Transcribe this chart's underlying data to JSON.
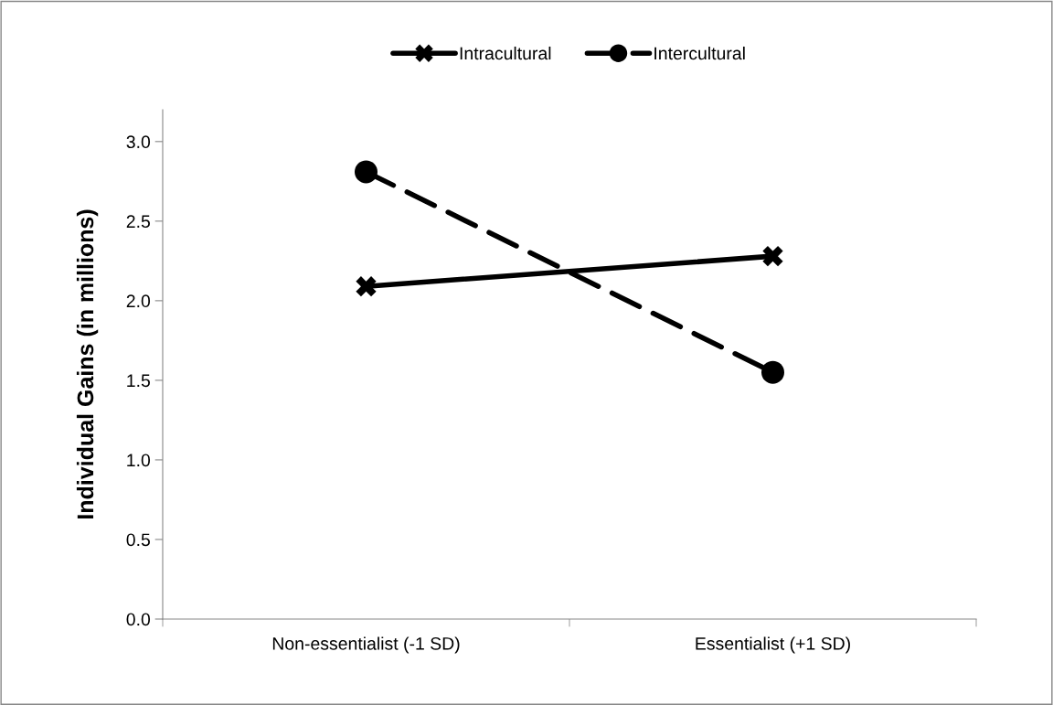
{
  "chart_data": {
    "type": "line",
    "ylabel": "Individual Gains (in millions)",
    "categories": [
      "Non-essentialist (-1 SD)",
      "Essentialist (+1 SD)"
    ],
    "series": [
      {
        "name": "Intracultural",
        "color": "#000000",
        "values": [
          2.09,
          2.28
        ],
        "marker": "cross",
        "line_style": "solid"
      },
      {
        "name": "Intercultural",
        "color": "#000000",
        "values": [
          2.81,
          1.55
        ],
        "marker": "circle",
        "line_style": "dashed"
      }
    ],
    "ylim": [
      0,
      3.2
    ],
    "yticks": [
      {
        "value": 0,
        "label": "0.0"
      },
      {
        "value": 0.5,
        "label": "0.5"
      },
      {
        "value": 1,
        "label": "1.0"
      },
      {
        "value": 1.5,
        "label": "1.5"
      },
      {
        "value": 2,
        "label": "2.0"
      },
      {
        "value": 2.5,
        "label": "2.5"
      },
      {
        "value": 3,
        "label": "3.0"
      }
    ],
    "grid": false,
    "legend": "top"
  }
}
